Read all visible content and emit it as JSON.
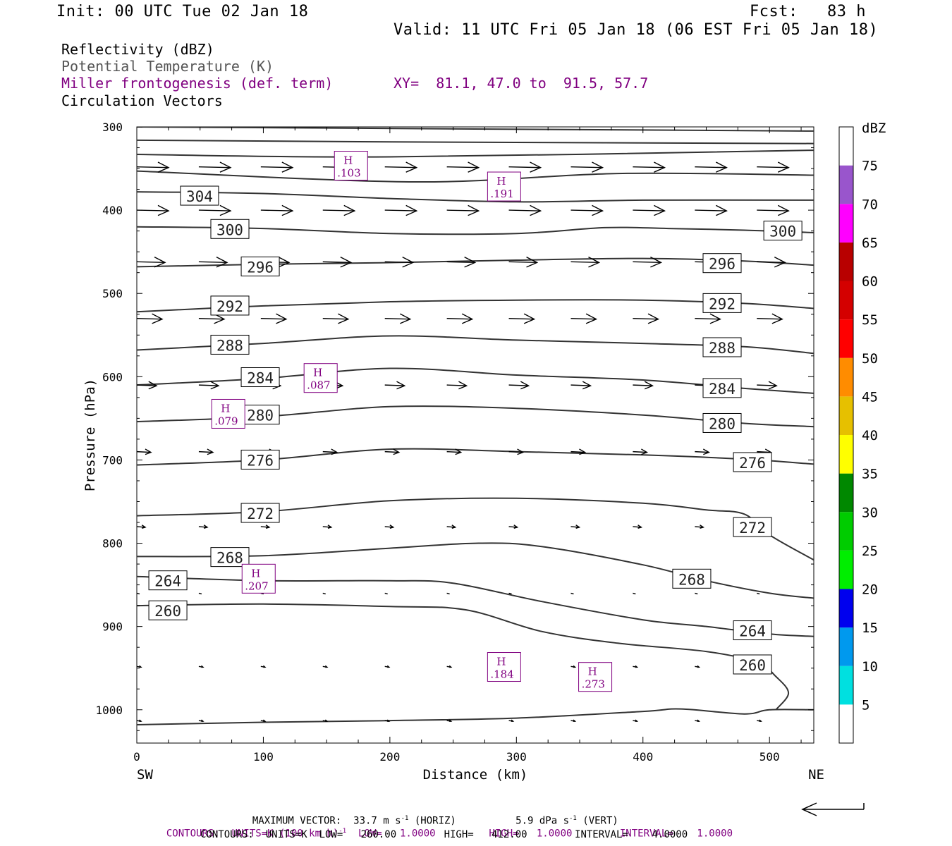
{
  "header": {
    "init": "Init: 00 UTC Tue 02 Jan 18",
    "fcst": "Fcst:   83 h",
    "valid": "Valid: 11 UTC Fri 05 Jan 18 (06 EST Fri 05 Jan 18)",
    "field1": "Reflectivity (dBZ)",
    "field2": "Potential Temperature (K)",
    "field3": "Miller frontogenesis (def. term)",
    "xy": "XY=  81.1, 47.0 to  91.5, 57.7",
    "field4": "Circulation Vectors"
  },
  "footer": {
    "maxvec_prefix": "MAXIMUM VECTOR:  33.7 m s",
    "maxvec_mid": " (HORIZ)          5.9 dPa s",
    "maxvec_suffix": " (VERT)",
    "sup": "-1",
    "contours_purple_a": "CONTOURS:  UNITS=K (100 km h)",
    "contours_purple_b": "  LOW=   1.0000         HIGH=   1.0000        INTERVAL=    1.0000",
    "contours_black": "CONTOURS:  UNITS=K  LOW=   260.00        HIGH=   412.00        INTERVAL=    4.0000"
  },
  "colors": {
    "theta": "#333333",
    "fronto": "#800080",
    "dbz": [
      "#ffffff",
      "#00e0e0",
      "#0099ee",
      "#0000ee",
      "#00ee00",
      "#00cc00",
      "#008800",
      "#ffff00",
      "#e6c000",
      "#ff8c00",
      "#ff0000",
      "#d40000",
      "#b80000",
      "#ff00ff",
      "#9955cc",
      "#ffffff"
    ]
  },
  "chart_data": {
    "type": "cross-section",
    "xlabel": "Distance (km)",
    "ylabel": "Pressure (hPa)",
    "xlim": [
      0,
      535
    ],
    "ylim": [
      1040,
      300
    ],
    "x_ticks": [
      0,
      100,
      200,
      300,
      400,
      500
    ],
    "y_ticks": [
      300,
      400,
      500,
      600,
      700,
      800,
      900,
      1000
    ],
    "x_end_labels": {
      "left": "SW",
      "right": "NE"
    },
    "colorbar": {
      "unit": "dBZ",
      "ticks": [
        "5",
        "10",
        "15",
        "20",
        "25",
        "30",
        "35",
        "40",
        "45",
        "50",
        "55",
        "60",
        "65",
        "70",
        "75"
      ]
    },
    "theta_contours": [
      {
        "value": 304,
        "label": "304",
        "label_at": [
          49,
          383
        ],
        "pts": [
          [
            0,
            378
          ],
          [
            100,
            380
          ],
          [
            200,
            386
          ],
          [
            300,
            390
          ],
          [
            400,
            388
          ],
          [
            535,
            388
          ]
        ]
      },
      {
        "value": 300,
        "label": "300",
        "label_at": [
          73,
          423
        ],
        "pts": [
          [
            0,
            420
          ],
          [
            100,
            422
          ],
          [
            200,
            428
          ],
          [
            300,
            428
          ],
          [
            370,
            421
          ],
          [
            420,
            422
          ],
          [
            480,
            424
          ],
          [
            535,
            427
          ]
        ]
      },
      {
        "value": 300,
        "label": "300",
        "label_at": [
          510,
          425
        ],
        "pts": []
      },
      {
        "value": 296,
        "label": "296",
        "label_at": [
          97,
          468
        ],
        "pts": [
          [
            0,
            468
          ],
          [
            100,
            465
          ],
          [
            200,
            463
          ],
          [
            300,
            460
          ],
          [
            400,
            458
          ],
          [
            480,
            461
          ],
          [
            535,
            466
          ]
        ]
      },
      {
        "value": 296,
        "label": "296",
        "label_at": [
          462,
          464
        ],
        "pts": []
      },
      {
        "value": 292,
        "label": "292",
        "label_at": [
          73,
          515
        ],
        "pts": [
          [
            0,
            522
          ],
          [
            100,
            515
          ],
          [
            200,
            510
          ],
          [
            300,
            508
          ],
          [
            400,
            508
          ],
          [
            480,
            512
          ],
          [
            535,
            518
          ]
        ]
      },
      {
        "value": 292,
        "label": "292",
        "label_at": [
          462,
          512
        ],
        "pts": []
      },
      {
        "value": 288,
        "label": "288",
        "label_at": [
          73,
          562
        ],
        "pts": [
          [
            0,
            568
          ],
          [
            100,
            560
          ],
          [
            200,
            551
          ],
          [
            300,
            556
          ],
          [
            400,
            560
          ],
          [
            480,
            564
          ],
          [
            535,
            572
          ]
        ]
      },
      {
        "value": 288,
        "label": "288",
        "label_at": [
          462,
          565
        ],
        "pts": []
      },
      {
        "value": 284,
        "label": "284",
        "label_at": [
          97,
          601
        ],
        "pts": [
          [
            0,
            610
          ],
          [
            100,
            602
          ],
          [
            200,
            590
          ],
          [
            300,
            598
          ],
          [
            400,
            604
          ],
          [
            480,
            614
          ],
          [
            535,
            620
          ]
        ]
      },
      {
        "value": 284,
        "label": "284",
        "label_at": [
          462,
          614
        ],
        "pts": []
      },
      {
        "value": 280,
        "label": "280",
        "label_at": [
          97,
          646
        ],
        "pts": [
          [
            0,
            654
          ],
          [
            100,
            648
          ],
          [
            200,
            636
          ],
          [
            300,
            638
          ],
          [
            400,
            646
          ],
          [
            480,
            656
          ],
          [
            535,
            660
          ]
        ]
      },
      {
        "value": 280,
        "label": "280",
        "label_at": [
          462,
          656
        ],
        "pts": []
      },
      {
        "value": 276,
        "label": "276",
        "label_at": [
          97,
          700
        ],
        "pts": [
          [
            0,
            706
          ],
          [
            100,
            700
          ],
          [
            200,
            687
          ],
          [
            300,
            690
          ],
          [
            400,
            694
          ],
          [
            480,
            699
          ],
          [
            535,
            705
          ]
        ]
      },
      {
        "value": 276,
        "label": "276",
        "label_at": [
          486,
          703
        ],
        "pts": []
      },
      {
        "value": 272,
        "label": "272",
        "label_at": [
          97,
          764
        ],
        "pts": [
          [
            0,
            767
          ],
          [
            100,
            762
          ],
          [
            200,
            749
          ],
          [
            300,
            746
          ],
          [
            400,
            752
          ],
          [
            450,
            760
          ],
          [
            480,
            765
          ],
          [
            500,
            790
          ],
          [
            535,
            820
          ]
        ]
      },
      {
        "value": 272,
        "label": "272",
        "label_at": [
          486,
          781
        ],
        "pts": []
      },
      {
        "value": 268,
        "label": "268",
        "label_at": [
          73,
          817
        ],
        "pts": [
          [
            0,
            816
          ],
          [
            100,
            815
          ],
          [
            200,
            806
          ],
          [
            270,
            800
          ],
          [
            320,
            804
          ],
          [
            400,
            826
          ],
          [
            450,
            845
          ],
          [
            500,
            860
          ],
          [
            535,
            866
          ]
        ]
      },
      {
        "value": 268,
        "label": "268",
        "label_at": [
          438,
          843
        ],
        "pts": []
      },
      {
        "value": 264,
        "label": "264",
        "label_at": [
          24,
          845
        ],
        "pts": [
          [
            0,
            840
          ],
          [
            100,
            845
          ],
          [
            200,
            845
          ],
          [
            250,
            848
          ],
          [
            320,
            870
          ],
          [
            400,
            892
          ],
          [
            450,
            900
          ],
          [
            500,
            909
          ],
          [
            535,
            912
          ]
        ]
      },
      {
        "value": 264,
        "label": "264",
        "label_at": [
          486,
          905
        ],
        "pts": []
      },
      {
        "value": 260,
        "label": "260",
        "label_at": [
          24,
          881
        ],
        "pts": [
          [
            0,
            875
          ],
          [
            100,
            873
          ],
          [
            200,
            876
          ],
          [
            260,
            880
          ],
          [
            320,
            906
          ],
          [
            380,
            920
          ],
          [
            450,
            930
          ],
          [
            490,
            943
          ],
          [
            505,
            960
          ],
          [
            515,
            980
          ],
          [
            505,
            1000
          ]
        ]
      },
      {
        "value": 260,
        "label": "260",
        "label_at": [
          486,
          946
        ],
        "pts": []
      },
      {
        "value": 1000,
        "label": "",
        "label_at": [
          0,
          0
        ],
        "pts": [
          [
            0,
            1018
          ],
          [
            100,
            1015
          ],
          [
            200,
            1013
          ],
          [
            300,
            1010
          ],
          [
            400,
            1002
          ],
          [
            430,
            999
          ],
          [
            480,
            1005
          ],
          [
            500,
            1000
          ],
          [
            535,
            1000
          ]
        ]
      }
    ],
    "fronto_maxima": [
      {
        "label": "H",
        "value": ".103",
        "at": [
          169,
          347
        ]
      },
      {
        "label": "H",
        "value": ".191",
        "at": [
          290,
          372
        ]
      },
      {
        "label": "H",
        "value": ".087",
        "at": [
          145,
          602
        ]
      },
      {
        "label": "H",
        "value": ".079",
        "at": [
          72,
          645
        ]
      },
      {
        "label": "H",
        "value": ".207",
        "at": [
          96,
          843
        ]
      },
      {
        "label": "H",
        "value": ".184",
        "at": [
          290,
          949
        ]
      },
      {
        "label": "H",
        "value": ".273",
        "at": [
          362,
          961
        ]
      }
    ],
    "vector_rows": [
      {
        "p": 348,
        "len": 45,
        "dp": 0
      },
      {
        "p": 400,
        "len": 45,
        "dp": 0
      },
      {
        "p": 462,
        "len": 40,
        "dp": 0
      },
      {
        "p": 530,
        "len": 36,
        "dp": 0
      },
      {
        "p": 610,
        "len": 28,
        "dp": 0
      },
      {
        "p": 690,
        "len": 20,
        "dp": 0
      },
      {
        "p": 780,
        "len": 12,
        "dp": 0
      },
      {
        "p": 860,
        "len": 4,
        "dp": 0
      },
      {
        "p": 948,
        "len": 6,
        "dp": 0
      },
      {
        "p": 1013,
        "len": 6,
        "dp": 0
      }
    ]
  }
}
